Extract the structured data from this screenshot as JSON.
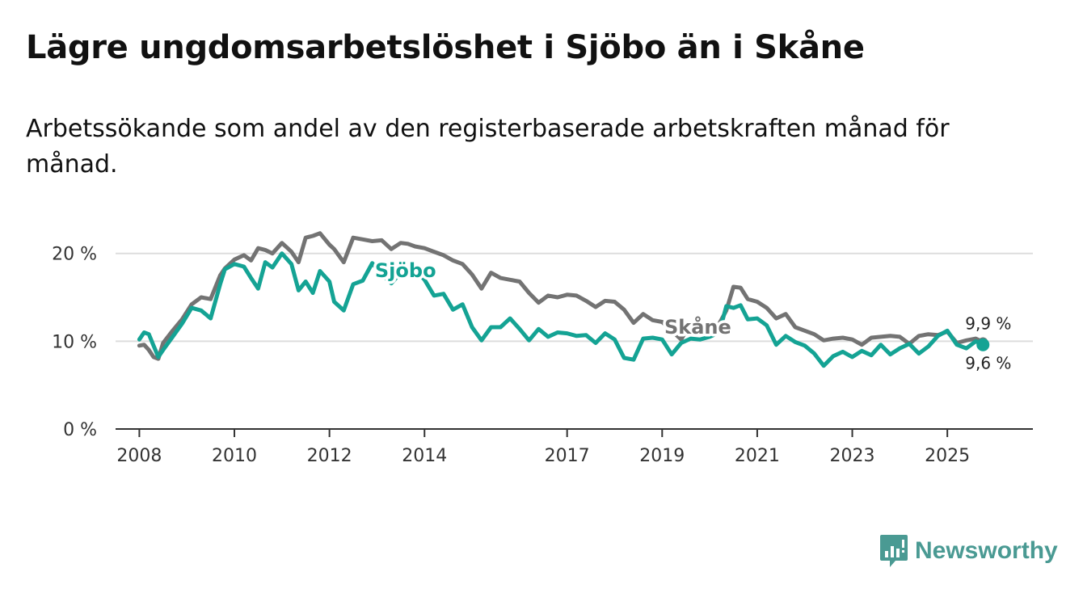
{
  "header": {
    "title": "Lägre ungdomsarbetslöshet i Sjöbo än i Skåne",
    "subtitle": "Arbetssökande som andel av den registerbaserade arbetskraften månad för månad."
  },
  "logo": {
    "text": "Newsworthy",
    "icon": "newsworthy-bar-chart-icon",
    "color": "#4a9a93"
  },
  "colors": {
    "sjobo": "#14a394",
    "skane": "#737373",
    "grid": "#dddddd",
    "axis": "#333333"
  },
  "chart_data": {
    "type": "line",
    "title": "Lägre ungdomsarbetslöshet i Sjöbo än i Skåne",
    "ylim": [
      0,
      22
    ],
    "xlim": [
      2007.5,
      2026.8
    ],
    "yticks": [
      0,
      10,
      20
    ],
    "ytick_labels": [
      "0 %",
      "10 %",
      "20 %"
    ],
    "xticks": [
      2008,
      2010,
      2012,
      2014,
      2017,
      2019,
      2021,
      2023,
      2025
    ],
    "xtick_labels": [
      "2008",
      "2010",
      "2012",
      "2014",
      "2017",
      "2019",
      "2021",
      "2023",
      "2025"
    ],
    "grid": true,
    "series": [
      {
        "name": "Skåne",
        "label": "Skåne",
        "end_label": "9,9 %",
        "x": [
          2008.0,
          2008.1,
          2008.2,
          2008.3,
          2008.4,
          2008.5,
          2008.7,
          2008.9,
          2009.1,
          2009.3,
          2009.5,
          2009.7,
          2009.8,
          2010.0,
          2010.2,
          2010.35,
          2010.5,
          2010.65,
          2010.8,
          2011.0,
          2011.2,
          2011.35,
          2011.5,
          2011.65,
          2011.8,
          2012.0,
          2012.1,
          2012.3,
          2012.5,
          2012.7,
          2012.9,
          2013.1,
          2013.3,
          2013.5,
          2013.65,
          2013.8,
          2014.0,
          2014.2,
          2014.4,
          2014.6,
          2014.8,
          2015.0,
          2015.2,
          2015.4,
          2015.6,
          2015.8,
          2016.0,
          2016.2,
          2016.4,
          2016.6,
          2016.8,
          2017.0,
          2017.2,
          2017.4,
          2017.6,
          2017.8,
          2018.0,
          2018.2,
          2018.4,
          2018.6,
          2018.8,
          2019.0,
          2019.2,
          2019.4,
          2019.6,
          2019.8,
          2020.0,
          2020.2,
          2020.35,
          2020.5,
          2020.65,
          2020.8,
          2021.0,
          2021.2,
          2021.4,
          2021.6,
          2021.8,
          2022.0,
          2022.2,
          2022.4,
          2022.6,
          2022.8,
          2023.0,
          2023.2,
          2023.4,
          2023.6,
          2023.8,
          2024.0,
          2024.2,
          2024.4,
          2024.6,
          2024.8,
          2025.0,
          2025.2,
          2025.4,
          2025.6,
          2025.75
        ],
        "values": [
          9.5,
          9.6,
          9.0,
          8.2,
          8.0,
          9.8,
          11.2,
          12.5,
          14.2,
          15.0,
          14.8,
          17.5,
          18.3,
          19.3,
          19.8,
          19.2,
          20.6,
          20.4,
          20.0,
          21.2,
          20.2,
          19.0,
          21.8,
          22.0,
          22.3,
          21.0,
          20.5,
          19.0,
          21.8,
          21.6,
          21.4,
          21.5,
          20.5,
          21.2,
          21.1,
          20.8,
          20.6,
          20.2,
          19.8,
          19.2,
          18.8,
          17.6,
          16.0,
          17.8,
          17.2,
          17.0,
          16.8,
          15.5,
          14.4,
          15.2,
          15.0,
          15.3,
          15.2,
          14.6,
          13.9,
          14.6,
          14.5,
          13.6,
          12.1,
          13.1,
          12.4,
          12.2,
          11.2,
          10.2,
          12.1,
          11.6,
          11.2,
          12.0,
          13.5,
          16.2,
          16.1,
          14.8,
          14.5,
          13.8,
          12.6,
          13.1,
          11.6,
          11.2,
          10.8,
          10.1,
          10.3,
          10.4,
          10.2,
          9.6,
          10.4,
          10.5,
          10.6,
          10.5,
          9.7,
          10.6,
          10.8,
          10.7,
          11.1,
          9.8,
          10.1,
          10.3,
          9.9
        ]
      },
      {
        "name": "Sjöbo",
        "label": "Sjöbo",
        "end_label": "9,6 %",
        "x": [
          2008.0,
          2008.1,
          2008.2,
          2008.3,
          2008.4,
          2008.5,
          2008.7,
          2008.9,
          2009.1,
          2009.3,
          2009.5,
          2009.7,
          2009.8,
          2010.0,
          2010.2,
          2010.35,
          2010.5,
          2010.65,
          2010.8,
          2011.0,
          2011.2,
          2011.35,
          2011.5,
          2011.65,
          2011.8,
          2012.0,
          2012.1,
          2012.3,
          2012.5,
          2012.7,
          2012.9,
          2013.1,
          2013.3,
          2013.5,
          2013.65,
          2013.8,
          2014.0,
          2014.2,
          2014.4,
          2014.6,
          2014.8,
          2015.0,
          2015.2,
          2015.4,
          2015.6,
          2015.8,
          2016.0,
          2016.2,
          2016.4,
          2016.6,
          2016.8,
          2017.0,
          2017.2,
          2017.4,
          2017.6,
          2017.8,
          2018.0,
          2018.2,
          2018.4,
          2018.6,
          2018.8,
          2019.0,
          2019.2,
          2019.4,
          2019.6,
          2019.8,
          2020.0,
          2020.2,
          2020.35,
          2020.5,
          2020.65,
          2020.8,
          2021.0,
          2021.2,
          2021.4,
          2021.6,
          2021.8,
          2022.0,
          2022.2,
          2022.4,
          2022.6,
          2022.8,
          2023.0,
          2023.2,
          2023.4,
          2023.6,
          2023.8,
          2024.0,
          2024.2,
          2024.4,
          2024.6,
          2024.8,
          2025.0,
          2025.2,
          2025.4,
          2025.6,
          2025.75
        ],
        "values": [
          10.2,
          11.0,
          10.8,
          9.5,
          8.2,
          9.0,
          10.5,
          12.0,
          13.8,
          13.5,
          12.6,
          16.5,
          18.2,
          18.8,
          18.5,
          17.2,
          16.0,
          19.0,
          18.4,
          20.0,
          18.8,
          15.8,
          16.8,
          15.5,
          18.0,
          16.8,
          14.5,
          13.5,
          16.5,
          16.9,
          18.9,
          17.6,
          16.6,
          17.8,
          18.8,
          18.2,
          17.0,
          15.2,
          15.4,
          13.6,
          14.2,
          11.6,
          10.1,
          11.6,
          11.6,
          12.6,
          11.4,
          10.1,
          11.4,
          10.5,
          11.0,
          10.9,
          10.6,
          10.7,
          9.8,
          10.9,
          10.2,
          8.1,
          7.9,
          10.3,
          10.4,
          10.2,
          8.5,
          9.8,
          10.3,
          10.2,
          10.5,
          11.0,
          14.0,
          13.8,
          14.1,
          12.5,
          12.6,
          11.8,
          9.6,
          10.6,
          9.9,
          9.5,
          8.6,
          7.2,
          8.3,
          8.8,
          8.2,
          8.9,
          8.4,
          9.6,
          8.5,
          9.2,
          9.7,
          8.6,
          9.4,
          10.6,
          11.2,
          9.6,
          9.2,
          10.0,
          9.6
        ]
      }
    ]
  }
}
